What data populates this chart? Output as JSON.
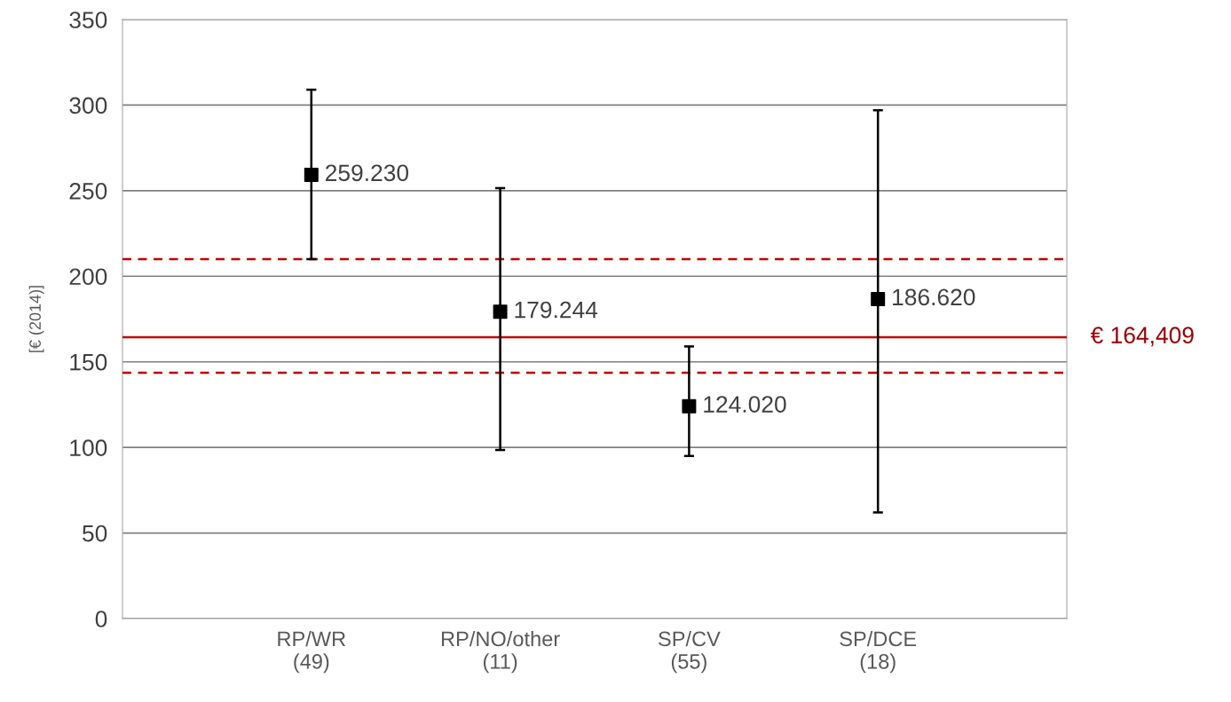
{
  "chart_data": {
    "type": "scatter",
    "ylabel": "[€ (2014)]",
    "categories": [
      "RP/WR\n(49)",
      "RP/NO/other\n(11)",
      "SP/CV\n(55)",
      "SP/DCE\n(18)"
    ],
    "series": [
      {
        "color": "#000000",
        "values": [
          259.23,
          179.244,
          124.02,
          186.62
        ],
        "errors": [
          [
            210,
            309
          ],
          [
            98.5,
            251.5
          ],
          [
            95,
            159
          ],
          [
            62,
            297
          ]
        ],
        "value_labels": [
          "259.230",
          "179.244",
          "124.020",
          "186.620"
        ]
      }
    ],
    "marker": "square",
    "ylim": [
      0,
      350
    ],
    "yticks": [
      0,
      50,
      100,
      150,
      200,
      250,
      300,
      350
    ],
    "grid": "y",
    "legend": false,
    "ref_lines": [
      {
        "axis": "y",
        "value": 164.409,
        "label": "€ 164,409",
        "color": "#c00000",
        "line_style": "solid"
      },
      {
        "axis": "y",
        "value": 210,
        "color": "#c00000",
        "line_style": "dashed"
      },
      {
        "axis": "y",
        "value": 143.6,
        "color": "#c00000",
        "line_style": "dashed"
      }
    ]
  }
}
